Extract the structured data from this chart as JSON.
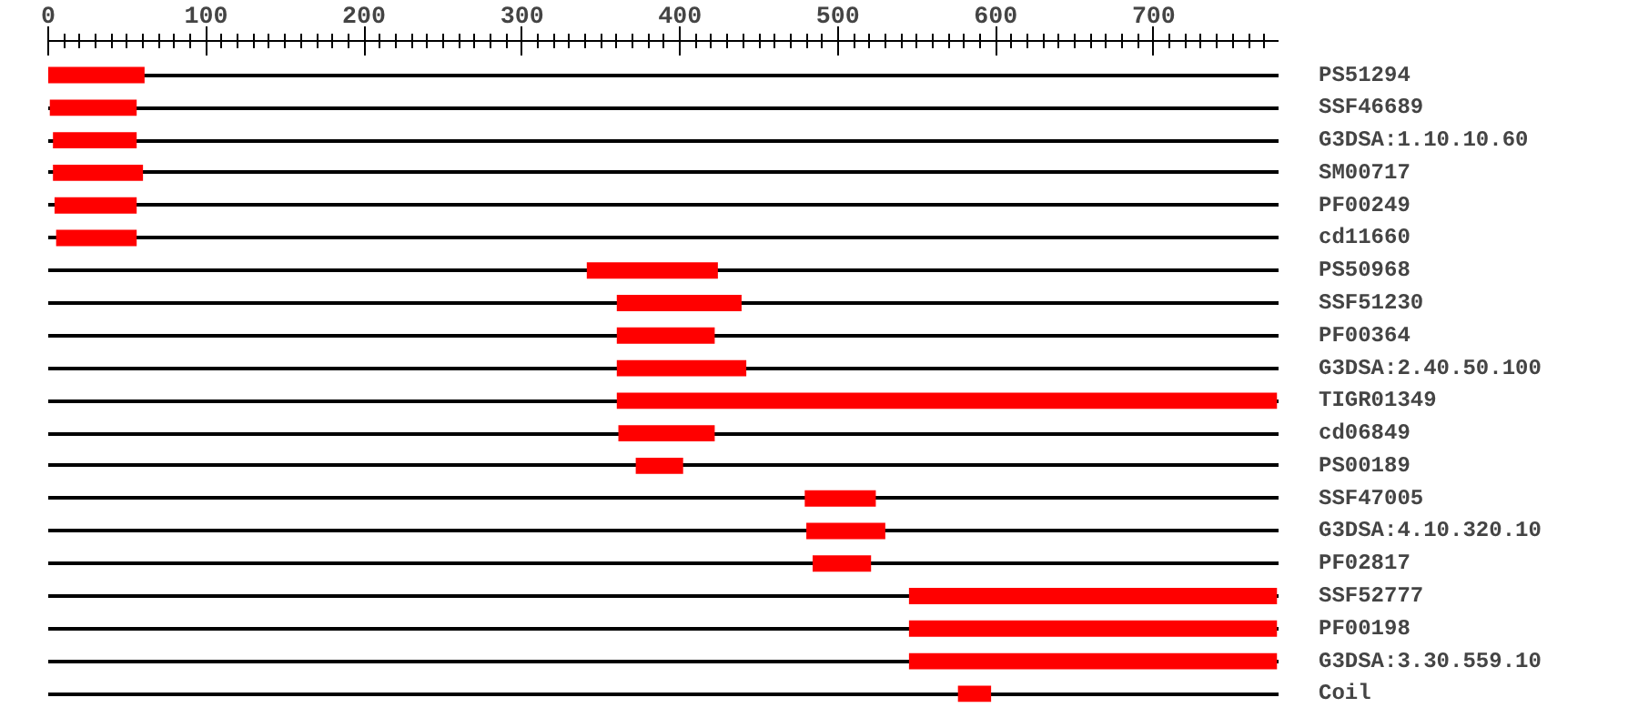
{
  "chart_data": {
    "type": "bar",
    "orientation": "horizontal",
    "grid": "y",
    "categories": [
      "PS51294",
      "SSF46689",
      "G3DSA:1.10.10.60",
      "SM00717",
      "PF00249",
      "cd11660",
      "PS50968",
      "SSF51230",
      "PF00364",
      "G3DSA:2.40.50.100",
      "TIGR01349",
      "cd06849",
      "PS00189",
      "SSF47005",
      "G3DSA:4.10.320.10",
      "PF02817",
      "SSF52777",
      "PF00198",
      "G3DSA:3.30.559.10",
      "Coil"
    ],
    "base": [
      0,
      1,
      3,
      3,
      4,
      5,
      341,
      360,
      360,
      360,
      360,
      361,
      372,
      479,
      480,
      484,
      545,
      545,
      545,
      576
    ],
    "values": [
      61,
      55,
      53,
      57,
      52,
      51,
      83,
      79,
      62,
      82,
      418,
      61,
      30,
      45,
      50,
      37,
      233,
      233,
      233,
      21
    ],
    "color": "#ff0000",
    "xlim": [
      0,
      779
    ],
    "xticks": [
      0,
      {
        "value": 10,
        "label": null
      },
      {
        "value": 20,
        "label": null
      },
      {
        "value": 30,
        "label": null
      },
      {
        "value": 40,
        "label": null
      },
      {
        "value": 50,
        "label": null
      },
      {
        "value": 60,
        "label": null
      },
      {
        "value": 70,
        "label": null
      },
      {
        "value": 80,
        "label": null
      },
      {
        "value": 90,
        "label": null
      },
      100,
      {
        "value": 110,
        "label": null
      },
      {
        "value": 120,
        "label": null
      },
      {
        "value": 130,
        "label": null
      },
      {
        "value": 140,
        "label": null
      },
      {
        "value": 150,
        "label": null
      },
      {
        "value": 160,
        "label": null
      },
      {
        "value": 170,
        "label": null
      },
      {
        "value": 180,
        "label": null
      },
      {
        "value": 190,
        "label": null
      },
      200,
      {
        "value": 210,
        "label": null
      },
      {
        "value": 220,
        "label": null
      },
      {
        "value": 230,
        "label": null
      },
      {
        "value": 240,
        "label": null
      },
      {
        "value": 250,
        "label": null
      },
      {
        "value": 260,
        "label": null
      },
      {
        "value": 270,
        "label": null
      },
      {
        "value": 280,
        "label": null
      },
      {
        "value": 290,
        "label": null
      },
      300,
      {
        "value": 310,
        "label": null
      },
      {
        "value": 320,
        "label": null
      },
      {
        "value": 330,
        "label": null
      },
      {
        "value": 340,
        "label": null
      },
      {
        "value": 350,
        "label": null
      },
      {
        "value": 360,
        "label": null
      },
      {
        "value": 370,
        "label": null
      },
      {
        "value": 380,
        "label": null
      },
      {
        "value": 390,
        "label": null
      },
      400,
      {
        "value": 410,
        "label": null
      },
      {
        "value": 420,
        "label": null
      },
      {
        "value": 430,
        "label": null
      },
      {
        "value": 440,
        "label": null
      },
      {
        "value": 450,
        "label": null
      },
      {
        "value": 460,
        "label": null
      },
      {
        "value": 470,
        "label": null
      },
      {
        "value": 480,
        "label": null
      },
      {
        "value": 490,
        "label": null
      },
      500,
      {
        "value": 510,
        "label": null
      },
      {
        "value": 520,
        "label": null
      },
      {
        "value": 530,
        "label": null
      },
      {
        "value": 540,
        "label": null
      },
      {
        "value": 550,
        "label": null
      },
      {
        "value": 560,
        "label": null
      },
      {
        "value": 570,
        "label": null
      },
      {
        "value": 580,
        "label": null
      },
      {
        "value": 590,
        "label": null
      },
      600,
      {
        "value": 610,
        "label": null
      },
      {
        "value": 620,
        "label": null
      },
      {
        "value": 630,
        "label": null
      },
      {
        "value": 640,
        "label": null
      },
      {
        "value": 650,
        "label": null
      },
      {
        "value": 660,
        "label": null
      },
      {
        "value": 670,
        "label": null
      },
      {
        "value": 680,
        "label": null
      },
      {
        "value": 690,
        "label": null
      },
      700,
      {
        "value": 710,
        "label": null
      },
      {
        "value": 720,
        "label": null
      },
      {
        "value": 730,
        "label": null
      },
      {
        "value": 740,
        "label": null
      },
      {
        "value": 750,
        "label": null
      },
      {
        "value": 760,
        "label": null
      },
      {
        "value": 770,
        "label": null
      }
    ]
  }
}
